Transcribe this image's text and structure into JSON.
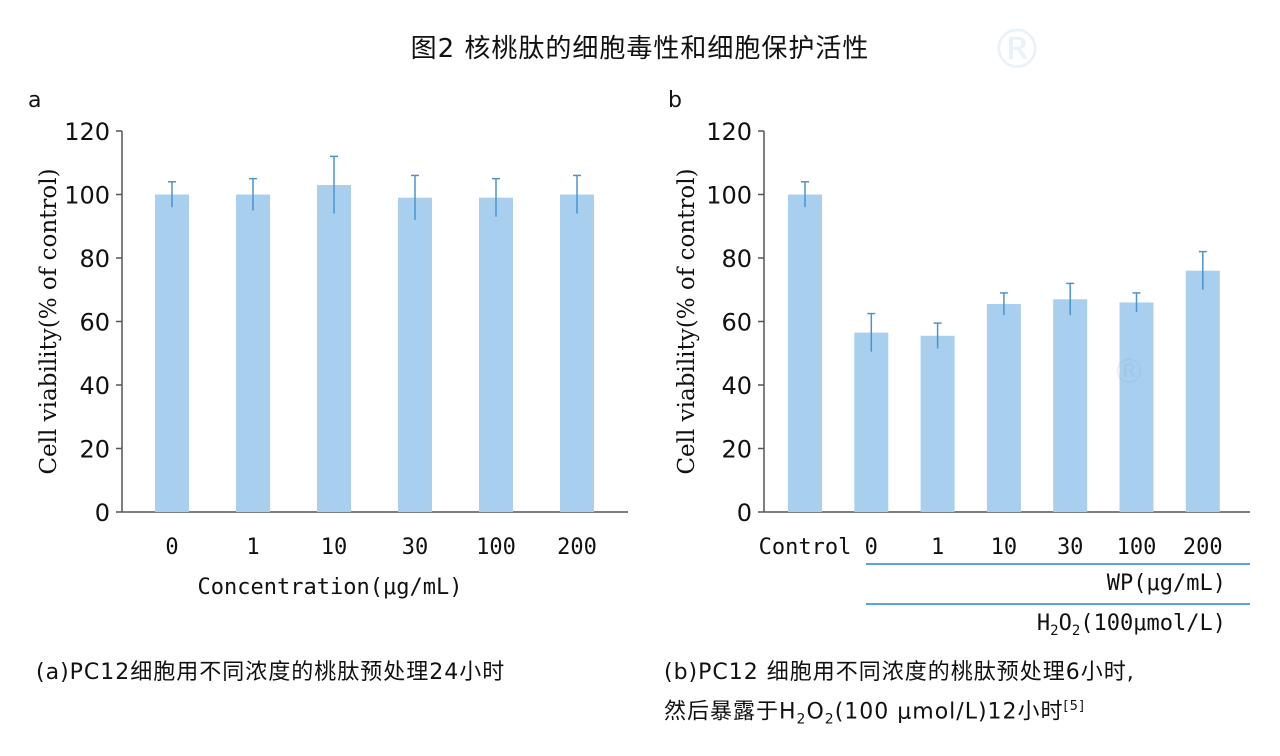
{
  "figure_title": "图2 核桃肽的细胞毒性和细胞保护活性",
  "panel_a_letter": "a",
  "panel_b_letter": "b",
  "caption_a": "(a)PC12细胞用不同浓度的桃肽预处理24小时",
  "caption_b_line1": "(b)PC12 细胞用不同浓度的桃肽预处理6小时,",
  "caption_b_line2_prefix": "然后暴露于H",
  "caption_b_line2_mid": "O",
  "caption_b_sub": "2",
  "caption_b_line2_suffix": "(100 μmol/L)12小时",
  "caption_b_ref": "[5]",
  "watermark_registered": "®",
  "colors": {
    "bar": "#a8cfee",
    "error_bar": "#4a93cf",
    "axis": "#555555",
    "group_line": "#5aa6dc"
  },
  "chart_data": [
    {
      "type": "bar",
      "title": "",
      "ylabel": "Cell viability(% of control)",
      "xlabel": "Concentration(μg/mL)",
      "ylim": [
        0,
        120
      ],
      "yticks": [
        0,
        20,
        40,
        60,
        80,
        100,
        120
      ],
      "categories": [
        "0",
        "1",
        "10",
        "30",
        "100",
        "200"
      ],
      "values": [
        100,
        100,
        103,
        99,
        99,
        100
      ],
      "errors": [
        4,
        5,
        9,
        7,
        6,
        6
      ],
      "grid": false
    },
    {
      "type": "bar",
      "title": "",
      "ylabel": "Cell viability(% of control)",
      "categories": [
        "Control",
        "0",
        "1",
        "10",
        "30",
        "100",
        "200"
      ],
      "values": [
        100,
        56.5,
        55.5,
        65.5,
        67,
        66,
        76
      ],
      "errors": [
        4,
        6,
        4,
        3.5,
        5,
        3,
        6
      ],
      "ylim": [
        0,
        120
      ],
      "yticks": [
        0,
        20,
        40,
        60,
        80,
        100,
        120
      ],
      "grid": false,
      "group_labels": {
        "wp": "WP(μg/mL)",
        "h2o2_prefix": "H",
        "h2o2_sub1": "2",
        "h2o2_mid": "O",
        "h2o2_sub2": "2",
        "h2o2_suffix": "(100μmol/L)"
      }
    }
  ]
}
